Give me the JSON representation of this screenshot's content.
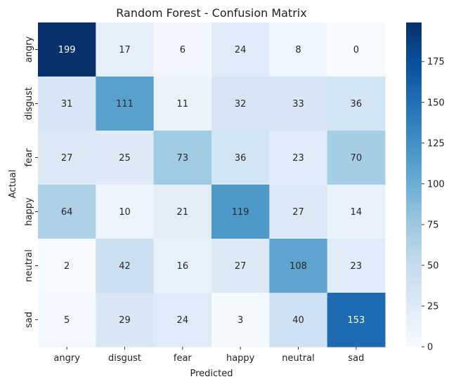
{
  "chart_data": {
    "type": "heatmap",
    "title": "Random Forest - Confusion Matrix",
    "xlabel": "Predicted",
    "ylabel": "Actual",
    "x_categories": [
      "angry",
      "disgust",
      "fear",
      "happy",
      "neutral",
      "sad"
    ],
    "y_categories": [
      "angry",
      "disgust",
      "fear",
      "happy",
      "neutral",
      "sad"
    ],
    "values": [
      [
        199,
        17,
        6,
        24,
        8,
        0
      ],
      [
        31,
        111,
        11,
        32,
        33,
        36
      ],
      [
        27,
        25,
        73,
        36,
        23,
        70
      ],
      [
        64,
        10,
        21,
        119,
        27,
        14
      ],
      [
        2,
        42,
        16,
        27,
        108,
        23
      ],
      [
        5,
        29,
        24,
        3,
        40,
        153
      ]
    ],
    "colormap": "Blues",
    "colorbar": {
      "min": 0,
      "max": 199,
      "ticks": [
        0,
        25,
        50,
        75,
        100,
        125,
        150,
        175
      ]
    },
    "colors": {
      "low": "#f7fbff",
      "high": "#08306b"
    }
  }
}
